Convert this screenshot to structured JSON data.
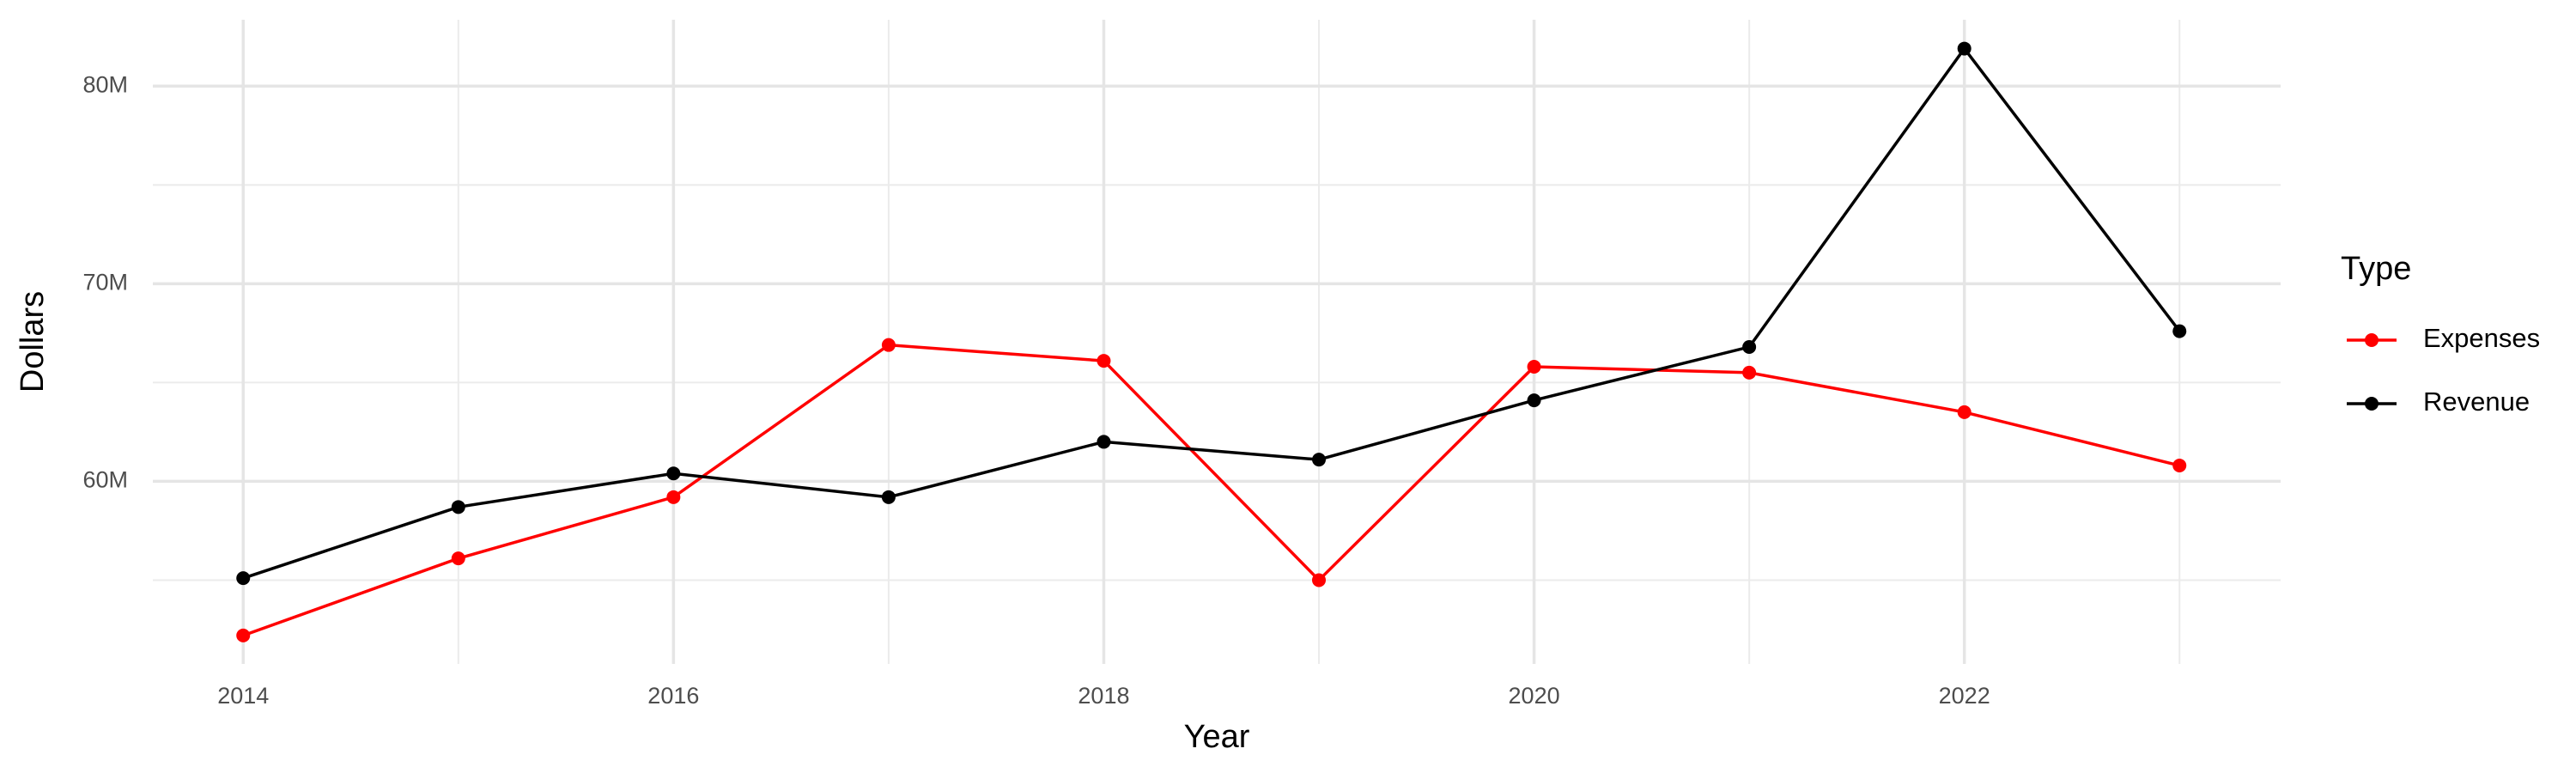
{
  "chart_data": {
    "type": "line",
    "x_label": "Year",
    "y_label": "Dollars",
    "legend_title": "Type",
    "legend_position": "right",
    "x": [
      2014,
      2015,
      2016,
      2017,
      2018,
      2019,
      2020,
      2021,
      2022,
      2023
    ],
    "series": [
      {
        "name": "Expenses",
        "color": "#ff0000",
        "values": [
          52200000,
          56100000,
          59200000,
          66900000,
          66100000,
          55000000,
          65800000,
          65500000,
          63500000,
          60800000
        ]
      },
      {
        "name": "Revenue",
        "color": "#000000",
        "values": [
          55100000,
          58700000,
          60400000,
          59200000,
          62000000,
          61100000,
          64100000,
          66800000,
          81900000,
          67600000
        ]
      }
    ],
    "xlim": [
      2013.58,
      2023.47
    ],
    "ylim": [
      50760000,
      83360000
    ],
    "xticks": [
      2014,
      2016,
      2018,
      2020,
      2022
    ],
    "x_minor_ticks": [
      2015,
      2017,
      2019,
      2021,
      2023
    ],
    "yticks": [
      {
        "value": 60000000,
        "label": "60M"
      },
      {
        "value": 70000000,
        "label": "70M"
      },
      {
        "value": 80000000,
        "label": "80M"
      }
    ],
    "y_minor_ticks": [
      55000000,
      65000000,
      75000000
    ],
    "grid": true
  }
}
